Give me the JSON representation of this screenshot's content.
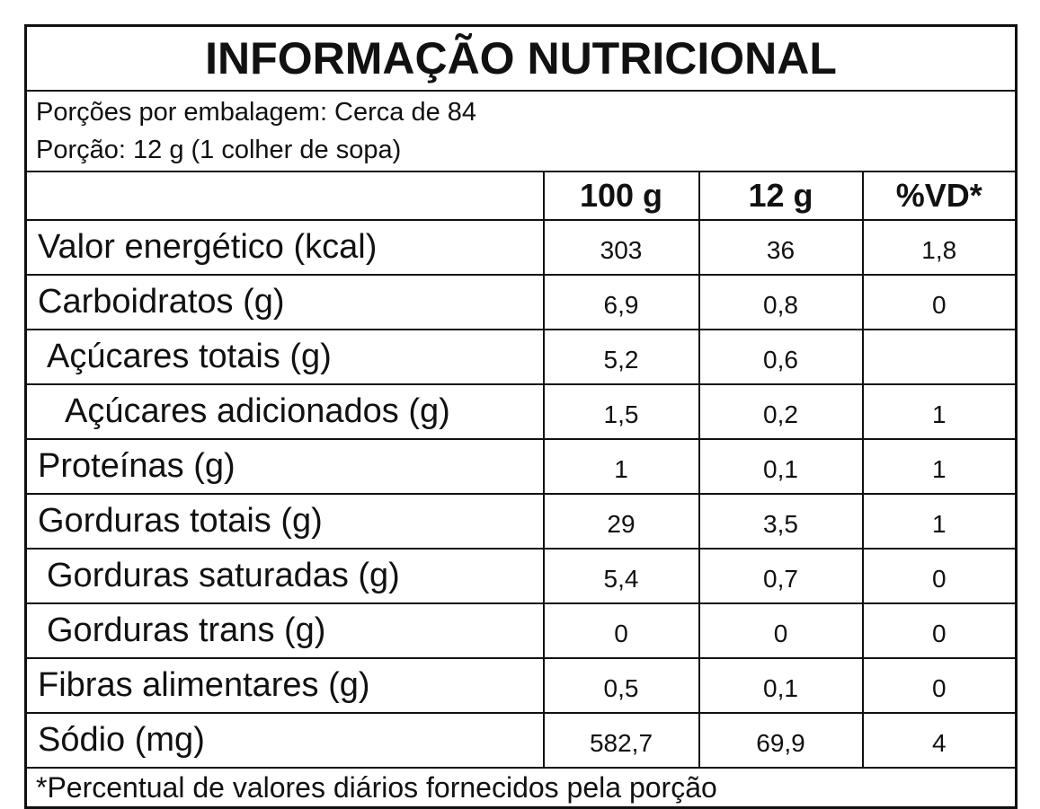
{
  "header": {
    "title": "INFORMAÇÃO NUTRICIONAL",
    "servings": "Porções por embalagem: Cerca de 84",
    "serving_size": "Porção: 12 g (1 colher de sopa)"
  },
  "table": {
    "columns": [
      "100 g",
      "12 g",
      "%VD*"
    ],
    "rows": [
      [
        "Valor energético (kcal)",
        "303",
        "36",
        "1,8"
      ],
      [
        "Carboidratos (g)",
        "6,9",
        "0,8",
        "0"
      ],
      [
        "Açúcares totais (g)",
        "5,2",
        "0,6",
        null
      ],
      [
        "Açúcares adicionados (g)",
        "1,5",
        "0,2",
        "1"
      ],
      [
        "Proteínas (g)",
        "1",
        "0,1",
        "1"
      ],
      [
        "Gorduras totais (g)",
        "29",
        "3,5",
        "1"
      ],
      [
        "Gorduras saturadas (g)",
        "5,4",
        "0,7",
        "0"
      ],
      [
        "Gorduras trans (g)",
        "0",
        "0",
        "0"
      ],
      [
        "Fibras alimentares (g)",
        "0,5",
        "0,1",
        "0"
      ],
      [
        "Sódio (mg)",
        "582,7",
        "69,9",
        "4"
      ]
    ]
  },
  "footer": {
    "note": "*Percentual de valores diários fornecidos pela porção"
  }
}
